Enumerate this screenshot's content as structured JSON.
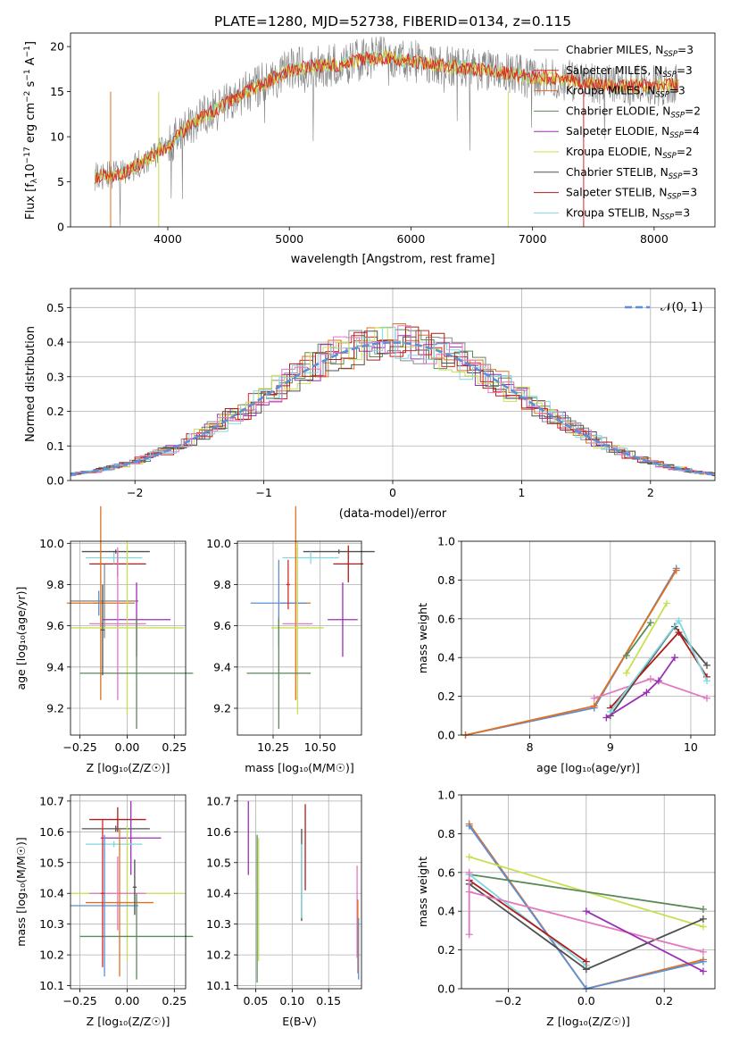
{
  "figure_title": "PLATE=1280, MJD=52738, FIBERID=0134, z=0.115",
  "colors": {
    "Chabrier MILES": "#8c8c8c",
    "Salpeter MILES": "#d62728",
    "Kroupa MILES": "#e07020",
    "Chabrier ELODIE": "#5a8a5a",
    "Salpeter ELODIE": "#9a2fb5",
    "Kroupa ELODIE": "#c8e050",
    "Chabrier STELIB": "#505050",
    "Salpeter STELIB": "#b01c1c",
    "Kroupa STELIB": "#7fd8e0",
    "extra_pink": "#e377c2",
    "extra_blue": "#5b8fd8",
    "normal_curve": "#5b8fd8"
  },
  "chart_data": [
    {
      "id": "spectrum",
      "type": "line",
      "title": "PLATE=1280, MJD=52738, FIBERID=0134, z=0.115",
      "xlabel": "wavelength [Angstrom, rest frame]",
      "ylabel_main": "Flux [f",
      "ylabel_sub": "λ",
      "ylabel_rest": "10",
      "ylabel_sup": "−17",
      "ylabel_tail": " erg cm",
      "ylabel_sup2": "−2",
      "ylabel_tail2": " s",
      "ylabel_sup3": "−1",
      "ylabel_tail3": " A",
      "ylabel_sup4": "−1",
      "ylabel_end": "]",
      "xlim": [
        3200,
        8500
      ],
      "ylim": [
        0,
        21.5
      ],
      "xticks": [
        4000,
        5000,
        6000,
        7000,
        8000
      ],
      "yticks": [
        0,
        5,
        10,
        15,
        20
      ],
      "data_range": [
        3400,
        8200
      ],
      "shape": [
        [
          3400,
          5.6
        ],
        [
          3600,
          5.8
        ],
        [
          3800,
          7.2
        ],
        [
          4000,
          9.0
        ],
        [
          4200,
          11.5
        ],
        [
          4400,
          13.0
        ],
        [
          4600,
          14.6
        ],
        [
          4800,
          16.0
        ],
        [
          5000,
          17.4
        ],
        [
          5200,
          17.8
        ],
        [
          5400,
          18.0
        ],
        [
          5600,
          18.6
        ],
        [
          5800,
          18.8
        ],
        [
          6000,
          18.4
        ],
        [
          6200,
          18.0
        ],
        [
          6400,
          17.7
        ],
        [
          6600,
          17.4
        ],
        [
          6800,
          17.0
        ],
        [
          7000,
          16.6
        ],
        [
          7200,
          16.4
        ],
        [
          7400,
          16.0
        ],
        [
          7600,
          15.7
        ],
        [
          7800,
          15.6
        ],
        [
          8000,
          15.7
        ],
        [
          8200,
          15.7
        ]
      ],
      "legend": [
        {
          "name": "Chabrier MILES",
          "label": "Chabrier MILES, N",
          "sub": "SSP",
          "tail": "=3"
        },
        {
          "name": "Salpeter MILES",
          "label": "Salpeter MILES, N",
          "sub": "SSP",
          "tail": "=3"
        },
        {
          "name": "Kroupa MILES",
          "label": "Kroupa MILES, N",
          "sub": "SSP",
          "tail": "=3"
        },
        {
          "name": "Chabrier ELODIE",
          "label": "Chabrier ELODIE, N",
          "sub": "SSP",
          "tail": "=2"
        },
        {
          "name": "Salpeter ELODIE",
          "label": "Salpeter ELODIE, N",
          "sub": "SSP",
          "tail": "=4"
        },
        {
          "name": "Kroupa ELODIE",
          "label": "Kroupa ELODIE, N",
          "sub": "SSP",
          "tail": "=2"
        },
        {
          "name": "Chabrier STELIB",
          "label": "Chabrier STELIB, N",
          "sub": "SSP",
          "tail": "=3"
        },
        {
          "name": "Salpeter STELIB",
          "label": "Salpeter STELIB, N",
          "sub": "SSP",
          "tail": "=3"
        },
        {
          "name": "Kroupa STELIB",
          "label": "Kroupa STELIB, N",
          "sub": "SSP",
          "tail": "=3"
        }
      ]
    },
    {
      "id": "residuals",
      "type": "histogram",
      "xlabel": "(data-model)/error",
      "ylabel": "Normed distribution",
      "xlim": [
        -2.5,
        2.5
      ],
      "ylim": [
        0,
        0.555
      ],
      "xticks": [
        -2,
        -1,
        0,
        1,
        2
      ],
      "yticks": [
        0.0,
        0.1,
        0.2,
        0.3,
        0.4,
        0.5
      ],
      "bin_width": 0.1,
      "legend_label": "𝒩(0, 1)",
      "grid": true
    },
    {
      "id": "age_vs_Z",
      "type": "errorbar",
      "xlabel": "Z [log₁₀(Z/Z☉)]",
      "ylabel": "age  [log₁₀(age/yr)]",
      "xlim": [
        -0.3,
        0.31
      ],
      "ylim": [
        9.07,
        10.01
      ],
      "xticks": [
        -0.25,
        0.0,
        0.25
      ],
      "xtick_labels": [
        "−0.25",
        "0.00",
        "0.25"
      ],
      "yticks": [
        9.2,
        9.4,
        9.6,
        9.8,
        10.0
      ],
      "points": [
        {
          "color": "Chabrier MILES",
          "x": -0.12,
          "xerr": 0.18,
          "y": 9.72,
          "yerr": 0.18
        },
        {
          "color": "Salpeter STELIB",
          "x": -0.05,
          "xerr": 0.15,
          "y": 9.9,
          "yerr": 0.06
        },
        {
          "color": "Kroupa STELIB",
          "x": -0.07,
          "xerr": 0.15,
          "y": 9.93,
          "yerr": 0.03
        },
        {
          "color": "Chabrier STELIB",
          "x": -0.06,
          "xerr": 0.18,
          "y": 9.96,
          "yerr": 0.01
        },
        {
          "color": "extra_blue",
          "x": -0.15,
          "xerr": 0.03,
          "y": 9.71,
          "yerr": 0.06
        },
        {
          "color": "Kroupa MILES",
          "x": -0.14,
          "xerr": 0.18,
          "y": 9.71,
          "yerr": 0.47
        },
        {
          "color": "Salpeter ELODIE",
          "x": 0.05,
          "xerr": 0.18,
          "y": 9.63,
          "yerr": 0.18
        },
        {
          "color": "extra_pink",
          "x": -0.05,
          "xerr": 0.15,
          "y": 9.61,
          "yerr": 0.37
        },
        {
          "color": "Kroupa ELODIE",
          "x": 0.0,
          "xerr": 0.3,
          "y": 9.59,
          "yerr": 0.42
        },
        {
          "color": "Chabrier ELODIE",
          "x": 0.05,
          "xerr": 0.3,
          "y": 9.37,
          "yerr": 0.27
        },
        {
          "color": "Chabrier STELIB",
          "x": -0.13,
          "xerr": 0.01,
          "y": 9.58,
          "yerr": 0.22
        }
      ]
    },
    {
      "id": "age_vs_mass",
      "type": "errorbar",
      "xlabel": "mass [log₁₀(M/M☉)]",
      "xlim": [
        10.06,
        10.72
      ],
      "ylim": [
        9.07,
        10.01
      ],
      "xticks": [
        10.25,
        10.5
      ],
      "xtick_labels": [
        "10.25",
        "10.50"
      ],
      "yticks": [
        9.2,
        9.4,
        9.6,
        9.8,
        10.0
      ],
      "points": [
        {
          "color": "Chabrier STELIB",
          "x": 10.6,
          "xerr": 0.19,
          "y": 9.96,
          "yerr": 0.01
        },
        {
          "color": "Kroupa STELIB",
          "x": 10.45,
          "xerr": 0.15,
          "y": 9.93,
          "yerr": 0.03
        },
        {
          "color": "Salpeter STELIB",
          "x": 10.65,
          "xerr": 0.08,
          "y": 9.9,
          "yerr": 0.09
        },
        {
          "color": "Kroupa MILES",
          "x": 10.37,
          "xerr": 0.08,
          "y": 9.71,
          "yerr": 0.47
        },
        {
          "color": "extra_blue",
          "x": 10.28,
          "xerr": 0.15,
          "y": 9.71,
          "yerr": 0.21
        },
        {
          "color": "Salpeter ELODIE",
          "x": 10.62,
          "xerr": 0.08,
          "y": 9.63,
          "yerr": 0.18
        },
        {
          "color": "extra_pink",
          "x": 10.38,
          "xerr": 0.08,
          "y": 9.61,
          "yerr": 0.37
        },
        {
          "color": "Kroupa ELODIE",
          "x": 10.38,
          "xerr": 0.14,
          "y": 9.59,
          "yerr": 0.42
        },
        {
          "color": "Chabrier ELODIE",
          "x": 10.28,
          "xerr": 0.17,
          "y": 9.37,
          "yerr": 0.27
        },
        {
          "color": "Salpeter MILES",
          "x": 10.33,
          "xerr": 0.01,
          "y": 9.8,
          "yerr": 0.12
        }
      ]
    },
    {
      "id": "weight_vs_age",
      "type": "line",
      "xlabel": "age  [log₁₀(age/yr)]",
      "ylabel": "mass weight",
      "xlim": [
        7.15,
        10.3
      ],
      "ylim": [
        0,
        1.0
      ],
      "xticks": [
        8,
        9,
        10
      ],
      "yticks": [
        0.0,
        0.2,
        0.4,
        0.6,
        0.8,
        1.0
      ],
      "series": [
        {
          "color": "extra_blue",
          "x": [
            7.2,
            8.8,
            9.82
          ],
          "y": [
            0.0,
            0.14,
            0.86
          ]
        },
        {
          "color": "Kroupa MILES",
          "x": [
            7.2,
            8.8,
            9.82
          ],
          "y": [
            0.0,
            0.15,
            0.85
          ]
        },
        {
          "color": "Chabrier ELODIE",
          "x": [
            9.2,
            9.5
          ],
          "y": [
            0.41,
            0.58
          ]
        },
        {
          "color": "Kroupa ELODIE",
          "x": [
            9.2,
            9.7
          ],
          "y": [
            0.32,
            0.68
          ]
        },
        {
          "color": "extra_pink",
          "x": [
            8.8,
            9.5,
            10.2
          ],
          "y": [
            0.19,
            0.29,
            0.19
          ]
        },
        {
          "color": "Chabrier STELIB",
          "x": [
            9.0,
            9.8,
            10.2
          ],
          "y": [
            0.1,
            0.56,
            0.36
          ]
        },
        {
          "color": "Salpeter STELIB",
          "x": [
            9.0,
            9.85,
            10.2
          ],
          "y": [
            0.14,
            0.53,
            0.3
          ]
        },
        {
          "color": "Kroupa STELIB",
          "x": [
            9.0,
            9.85,
            10.2
          ],
          "y": [
            0.12,
            0.59,
            0.28
          ]
        },
        {
          "color": "Salpeter ELODIE",
          "x": [
            8.95,
            9.45,
            9.6,
            9.8
          ],
          "y": [
            0.09,
            0.22,
            0.28,
            0.4
          ]
        }
      ]
    },
    {
      "id": "mass_vs_Z",
      "type": "errorbar",
      "xlabel": "Z [log₁₀(Z/Z☉)]",
      "ylabel": "mass [log₁₀(M/M☉)]",
      "xlim": [
        -0.3,
        0.31
      ],
      "ylim": [
        10.09,
        10.72
      ],
      "xticks": [
        -0.25,
        0.0,
        0.25
      ],
      "xtick_labels": [
        "−0.25",
        "0.00",
        "0.25"
      ],
      "yticks": [
        10.1,
        10.2,
        10.3,
        10.4,
        10.5,
        10.6,
        10.7
      ],
      "points": [
        {
          "color": "Salpeter STELIB",
          "x": -0.05,
          "xerr": 0.15,
          "y": 10.64,
          "yerr": 0.04
        },
        {
          "color": "Chabrier STELIB",
          "x": -0.06,
          "xerr": 0.18,
          "y": 10.61,
          "yerr": 0.01
        },
        {
          "color": "Salpeter ELODIE",
          "x": 0.02,
          "xerr": 0.16,
          "y": 10.58,
          "yerr": 0.12
        },
        {
          "color": "Kroupa STELIB",
          "x": -0.07,
          "xerr": 0.15,
          "y": 10.56,
          "yerr": 0.01
        },
        {
          "color": "Kroupa ELODIE",
          "x": 0.0,
          "xerr": 0.3,
          "y": 10.4,
          "yerr": 0.22
        },
        {
          "color": "extra_pink",
          "x": -0.05,
          "xerr": 0.15,
          "y": 10.4,
          "yerr": 0.12
        },
        {
          "color": "Kroupa MILES",
          "x": -0.04,
          "xerr": 0.18,
          "y": 10.37,
          "yerr": 0.24
        },
        {
          "color": "extra_blue",
          "x": -0.12,
          "xerr": 0.18,
          "y": 10.36,
          "yerr": 0.23
        },
        {
          "color": "Chabrier ELODIE",
          "x": 0.05,
          "xerr": 0.3,
          "y": 10.26,
          "yerr": 0.14
        },
        {
          "color": "Chabrier STELIB",
          "x": 0.04,
          "xerr": 0.01,
          "y": 10.42,
          "yerr": 0.09
        },
        {
          "color": "Salpeter MILES",
          "x": -0.13,
          "xerr": 0.01,
          "y": 10.4,
          "yerr": 0.24
        }
      ]
    },
    {
      "id": "mass_vs_ebv",
      "type": "errorbar",
      "xlabel": "E(B-V)",
      "xlim": [
        0.025,
        0.195
      ],
      "ylim": [
        10.09,
        10.72
      ],
      "xticks": [
        0.05,
        0.1,
        0.15
      ],
      "xtick_labels": [
        "0.05",
        "0.10",
        "0.15"
      ],
      "yticks": [
        10.1,
        10.2,
        10.3,
        10.4,
        10.5,
        10.6,
        10.7
      ],
      "points": [
        {
          "color": "Salpeter ELODIE",
          "x": 0.04,
          "xerr": 0.0,
          "y": 10.58,
          "yerr": 0.12
        },
        {
          "color": "Chabrier ELODIE",
          "x": 0.052,
          "xerr": 0.0,
          "y": 10.35,
          "yerr": 0.24
        },
        {
          "color": "Kroupa ELODIE",
          "x": 0.054,
          "xerr": 0.0,
          "y": 10.38,
          "yerr": 0.2
        },
        {
          "color": "Chabrier STELIB",
          "x": 0.113,
          "xerr": 0.0,
          "y": 10.46,
          "yerr": 0.15
        },
        {
          "color": "Kroupa STELIB",
          "x": 0.113,
          "xerr": 0.0,
          "y": 10.44,
          "yerr": 0.12
        },
        {
          "color": "Salpeter STELIB",
          "x": 0.118,
          "xerr": 0.0,
          "y": 10.55,
          "yerr": 0.14
        },
        {
          "color": "extra_pink",
          "x": 0.189,
          "xerr": 0.0,
          "y": 10.34,
          "yerr": 0.15
        },
        {
          "color": "Kroupa MILES",
          "x": 0.19,
          "xerr": 0.0,
          "y": 10.26,
          "yerr": 0.12
        },
        {
          "color": "extra_blue",
          "x": 0.191,
          "xerr": 0.0,
          "y": 10.22,
          "yerr": 0.1
        }
      ]
    },
    {
      "id": "weight_vs_Z",
      "type": "line",
      "xlabel": "Z [log₁₀(Z/Z☉)]",
      "ylabel": "mass weight",
      "xlim": [
        -0.32,
        0.33
      ],
      "ylim": [
        0,
        1.0
      ],
      "xticks": [
        -0.2,
        0.0,
        0.2
      ],
      "xtick_labels": [
        "−0.2",
        "0.0",
        "0.2"
      ],
      "yticks": [
        0.0,
        0.2,
        0.4,
        0.6,
        0.8,
        1.0
      ],
      "series": [
        {
          "color": "Kroupa MILES",
          "x": [
            -0.3,
            0.0,
            0.3
          ],
          "y": [
            0.85,
            0.0,
            0.15
          ]
        },
        {
          "color": "extra_blue",
          "x": [
            -0.3,
            0.0,
            0.3
          ],
          "y": [
            0.84,
            0.0,
            0.14
          ]
        },
        {
          "color": "Kroupa ELODIE",
          "x": [
            -0.3,
            0.3
          ],
          "y": [
            0.68,
            0.32
          ]
        },
        {
          "color": "Chabrier ELODIE",
          "x": [
            -0.3,
            0.3
          ],
          "y": [
            0.59,
            0.41
          ]
        },
        {
          "color": "Kroupa STELIB",
          "x": [
            -0.3,
            0.0
          ],
          "y": [
            0.59,
            0.12
          ]
        },
        {
          "color": "Salpeter STELIB",
          "x": [
            -0.3,
            0.0
          ],
          "y": [
            0.56,
            0.14
          ]
        },
        {
          "color": "Chabrier STELIB",
          "x": [
            -0.3,
            0.0,
            0.3
          ],
          "y": [
            0.54,
            0.1,
            0.36
          ]
        },
        {
          "color": "extra_pink",
          "x": [
            -0.3,
            0.3
          ],
          "y": [
            0.5,
            0.19
          ]
        },
        {
          "color": "Salpeter ELODIE",
          "x": [
            0.0,
            0.3
          ],
          "y": [
            0.4,
            0.09
          ]
        },
        {
          "color": "extra_pink",
          "x": [
            -0.3,
            -0.3
          ],
          "y": [
            0.28,
            0.6
          ]
        }
      ]
    }
  ]
}
